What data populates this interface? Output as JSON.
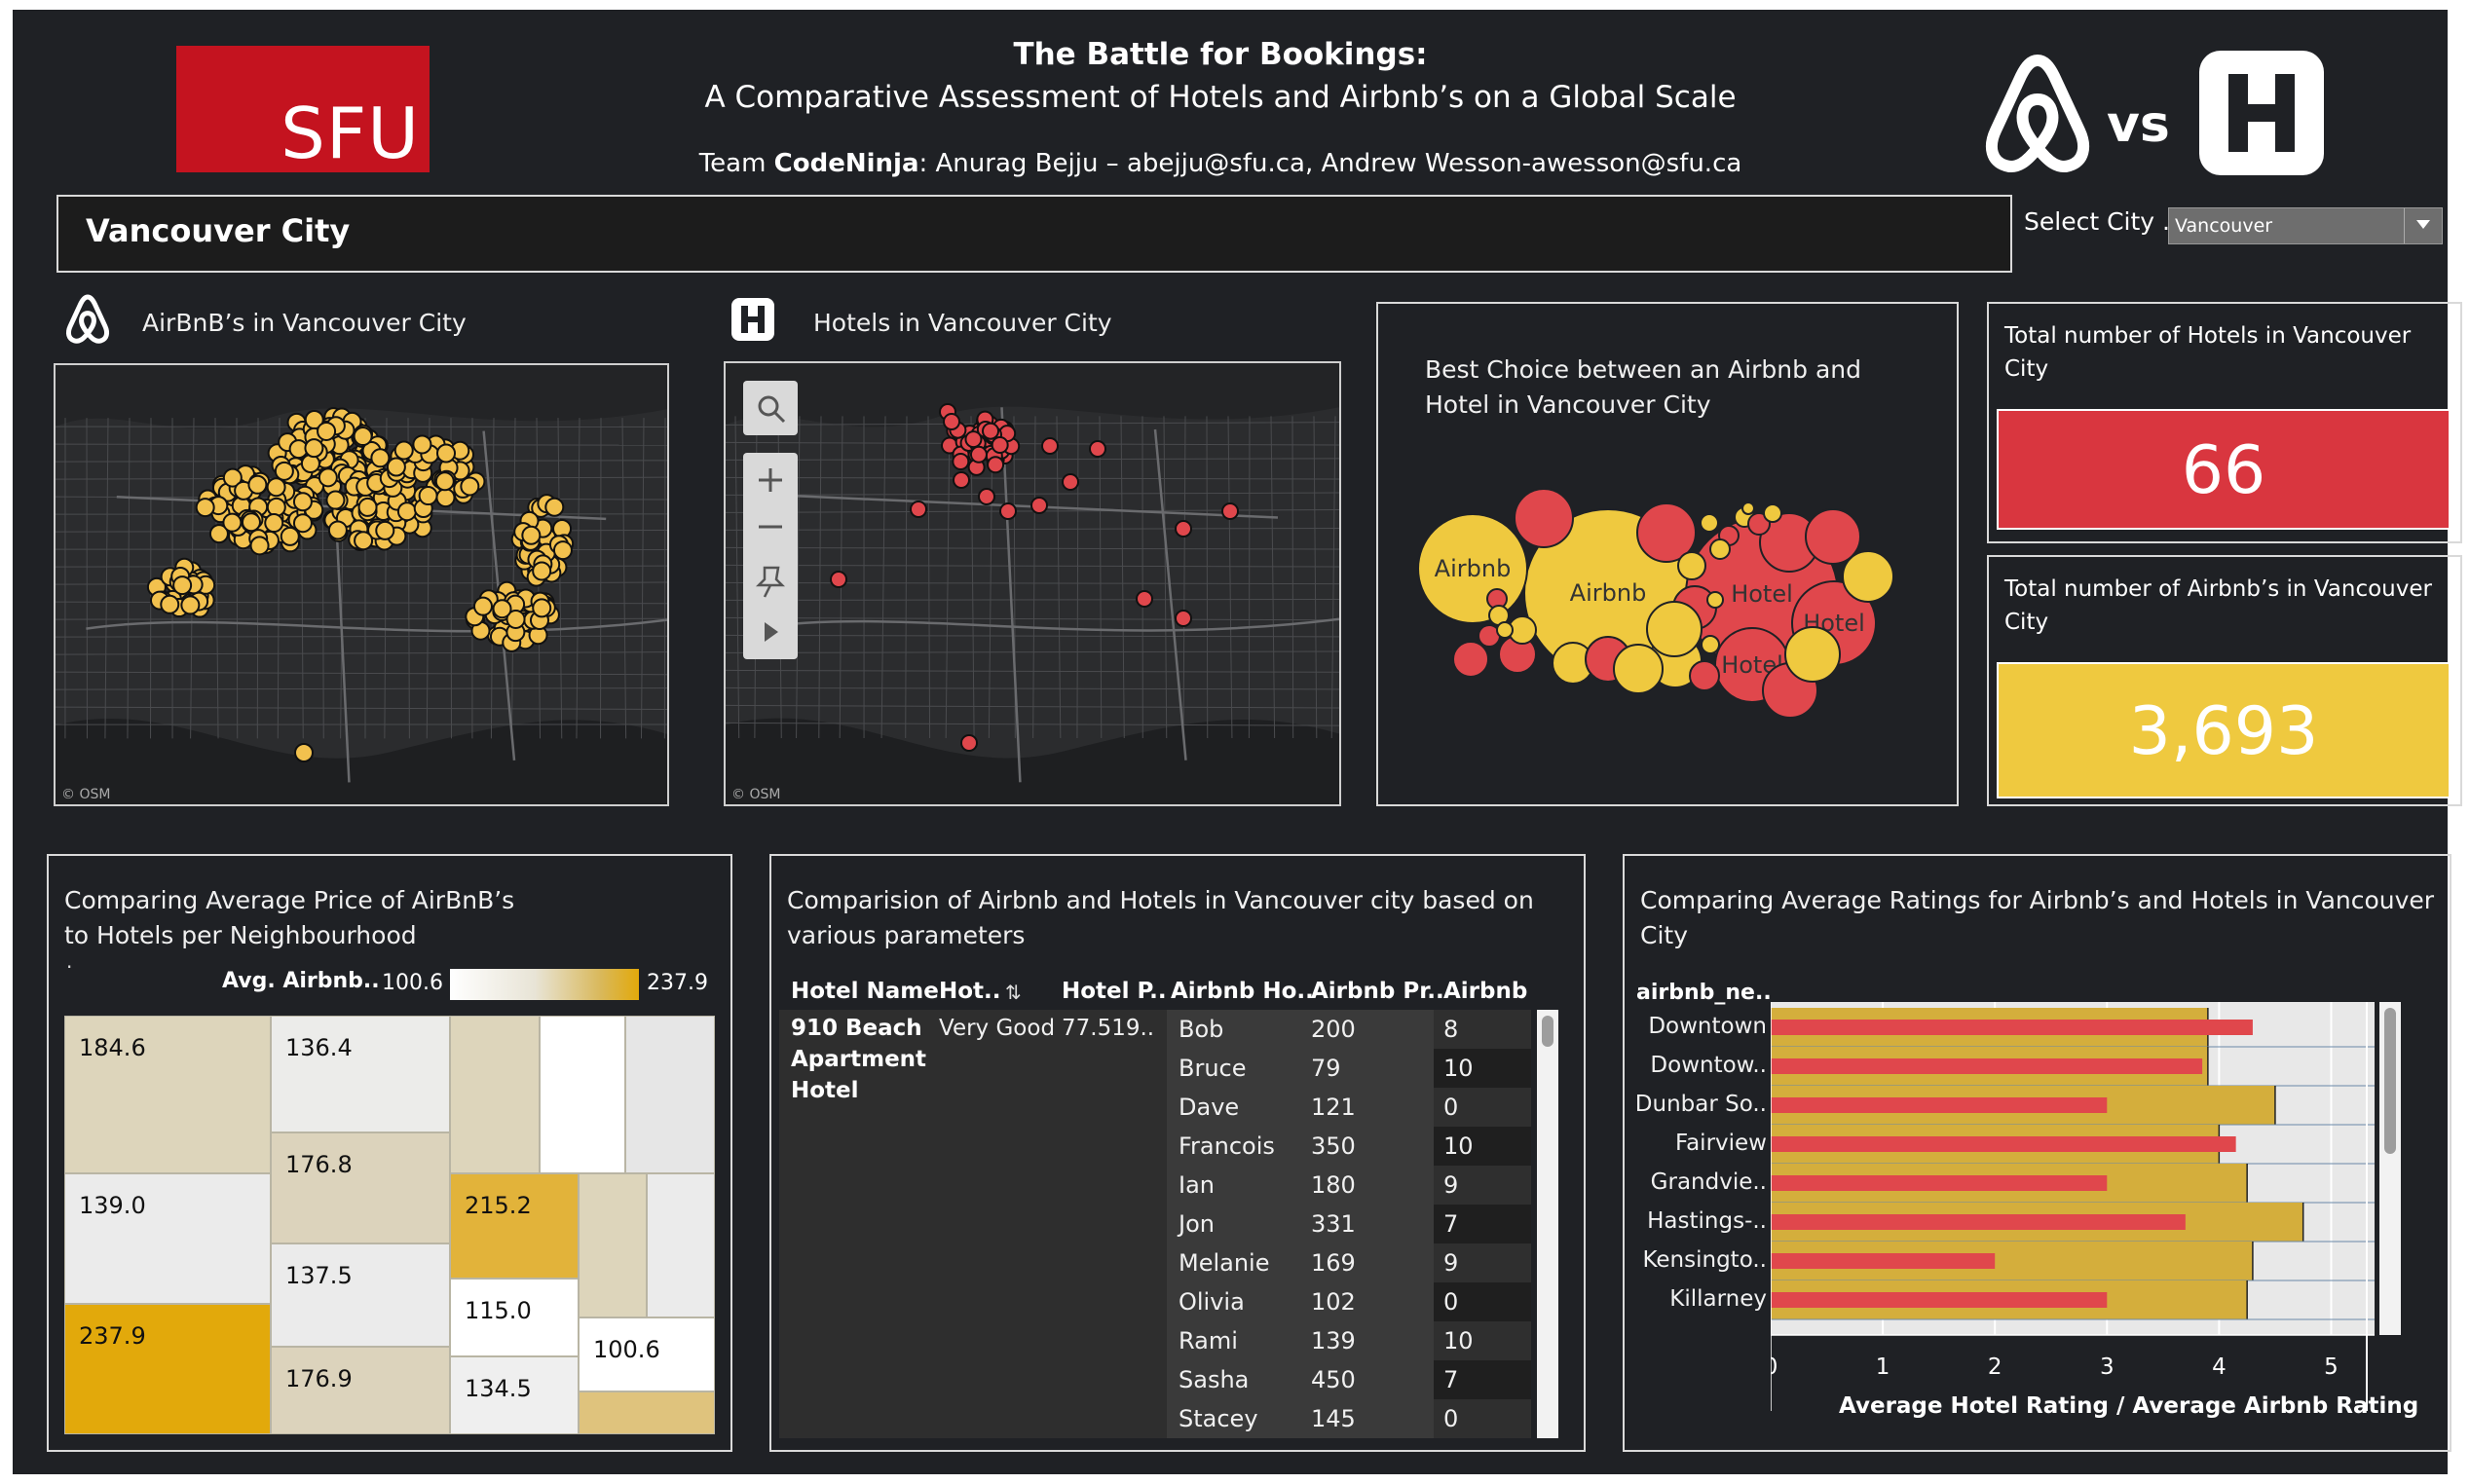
{
  "header": {
    "logo_text": "SFU",
    "title_line1": "The Battle for Bookings:",
    "title_line2": "A Comparative Assessment of Hotels and Airbnb’s on a Global Scale",
    "team_prefix": "Team ",
    "team_name": "CodeNinja",
    "team_members": ": Anurag Bejju – abejju@sfu.ca, Andrew Wesson-awesson@sfu.ca",
    "vs_label": "vs"
  },
  "city_banner": {
    "title": "Vancouver City"
  },
  "city_select": {
    "label": "Select City ..",
    "value": "Vancouver"
  },
  "airbnb_map": {
    "title": "AirBnB’s in Vancouver  City",
    "credit": "© OSM",
    "marker_color": "#f2c14e"
  },
  "hotel_map": {
    "title": "Hotels in Vancouver City",
    "credit": "© OSM",
    "marker_color": "#e0474c"
  },
  "bubble_panel": {
    "title_line1": "Best Choice between an Airbnb and",
    "title_line2": "Hotel in Vancouver City",
    "labels": [
      "Airbnb",
      "Airbnb",
      "Hotel",
      "Hotel",
      "Hotel"
    ],
    "colors": {
      "airbnb": "#efc93f",
      "hotel": "#e0474c"
    }
  },
  "kpi_hotels": {
    "label_line1": "Total number of Hotels in  Vancouver",
    "label_line2": "City",
    "value": "66",
    "color": "#d9363f"
  },
  "kpi_airbnb": {
    "label_line1": "Total number of Airbnb’s in Vancouver",
    "label_line2": "City",
    "value": "3,693",
    "color": "#efc93f"
  },
  "treemap": {
    "title_line1": "Comparing Average Price of AirBnB’s",
    "title_line2": "to Hotels per Neighbourhood",
    "dot": ".",
    "legend_label": "Avg. Airbnb..",
    "legend_min": "100.6",
    "legend_max": "237.9",
    "cells": [
      "184.6",
      "139.0",
      "237.9",
      "136.4",
      "176.8",
      "137.5",
      "176.9",
      "215.2",
      "115.0",
      "134.5",
      "100.6"
    ]
  },
  "comparison_table": {
    "title_line1": "Comparision of Airbnb and Hotels in Vancouver  city based on",
    "title_line2": "various parameters",
    "headers": [
      "Hotel Name",
      "Hot..",
      "Hotel P..",
      "Airbnb Ho..",
      "Airbnb Pr..",
      "Airbnb"
    ],
    "hotel_name_lines": [
      "910 Beach",
      "Apartment",
      "Hotel"
    ],
    "hotel_rating": "Very Good",
    "hotel_price": "77.519..",
    "rows": [
      {
        "host": "Bob",
        "price": "200",
        "rating": "8"
      },
      {
        "host": "Bruce",
        "price": "79",
        "rating": "10"
      },
      {
        "host": "Dave",
        "price": "121",
        "rating": "0"
      },
      {
        "host": "Francois",
        "price": "350",
        "rating": "10"
      },
      {
        "host": "Ian",
        "price": "180",
        "rating": "9"
      },
      {
        "host": "Jon",
        "price": "331",
        "rating": "7"
      },
      {
        "host": "Melanie",
        "price": "169",
        "rating": "9"
      },
      {
        "host": "Olivia",
        "price": "102",
        "rating": "0"
      },
      {
        "host": "Rami",
        "price": "139",
        "rating": "10"
      },
      {
        "host": "Sasha",
        "price": "450",
        "rating": "7"
      },
      {
        "host": "Stacey",
        "price": "145",
        "rating": "0"
      }
    ]
  },
  "ratings_chart": {
    "title_line1": "Comparing Average Ratings for Airbnb’s and Hotels in Vancouver",
    "title_line2": "City",
    "header": "airbnb_ne..",
    "xlabel": "Average Hotel Rating / Average Airbnb Rating",
    "x_ticks": [
      "0",
      "1",
      "2",
      "3",
      "4",
      "5"
    ]
  },
  "chart_data": {
    "type": "bar",
    "categories": [
      "Downtown",
      "Downtow..",
      "Dunbar So..",
      "Fairview",
      "Grandvie..",
      "Hastings-..",
      "Kensingto..",
      "Killarney"
    ],
    "series": [
      {
        "values": [
          3.9,
          3.9,
          4.5,
          4.0,
          4.25,
          4.75,
          4.3,
          4.25
        ]
      },
      {
        "values": [
          4.3,
          3.85,
          3.0,
          4.15,
          3.0,
          3.7,
          2.0,
          3.0
        ]
      }
    ],
    "xlim": [
      0,
      5.2
    ],
    "xlabel": "Average Hotel Rating / Average Airbnb Rating",
    "colors": {
      "airbnb": "#d4ae3c",
      "hotel": "#e0474c"
    }
  }
}
